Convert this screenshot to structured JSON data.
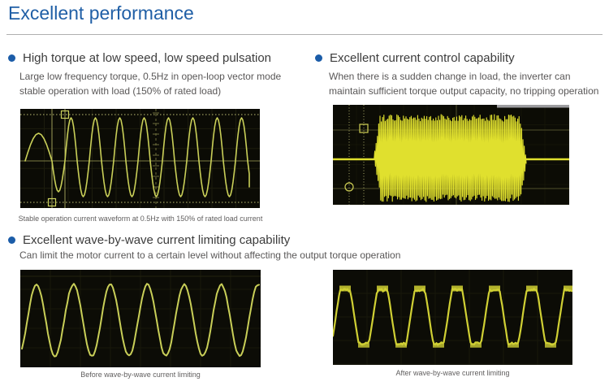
{
  "page": {
    "title": "Excellent performance"
  },
  "colors": {
    "title_blue": "#205fa6",
    "bullet_blue": "#1b5ca8",
    "heading_text": "#3c3c3c",
    "body_text": "#595757",
    "divider_gray": "#b0afaf"
  },
  "features": [
    {
      "heading": "High torque at low speed, low speed pulsation",
      "desc_lines": [
        "Large low frequency torque, 0.5Hz in open-loop vector mode",
        "stable operation with load (150% of rated load)"
      ]
    },
    {
      "heading": "Excellent current control capability",
      "desc_lines": [
        "When there is a sudden change in load, the inverter can",
        "maintain sufficient torque output capacity, no tripping operation"
      ]
    },
    {
      "heading": "Excellent wave-by-wave current limiting capability",
      "desc_lines": [
        "Can limit the motor current to a certain level without affecting the output torque operation"
      ]
    }
  ],
  "captions": {
    "low_speed": "Stable operation current waveform at 0.5Hz with 150% of rated load current",
    "before_limit": "Before wave-by-wave current limiting",
    "after_limit": "After wave-by-wave current limiting"
  },
  "chart_data": [
    {
      "id": "low-speed-scope",
      "type": "line",
      "pattern": "current sine wave: small half-amplitude first hump then steady full-amplitude cycles; dashed amplitude cursor lines top/bottom, two vertical cursor lines with square markers",
      "cycles": 8,
      "trace_color": "#c9cf58",
      "bg_color": "#0b0b05",
      "caption": "Stable operation current waveform at 0.5Hz with 150% of rated load current"
    },
    {
      "id": "sudden-load-scope",
      "type": "line",
      "pattern": "quiet flat line, dense high-frequency full-amplitude burst during sudden load change, quiet flat line; dotted vertical cursors with square and circle markers",
      "cycles": 60,
      "trace_color": "#e0e02e",
      "bg_color": "#0c0c05"
    },
    {
      "id": "before-limit-scope",
      "type": "line",
      "pattern": "clean motor-current sine wave",
      "cycles": 6.5,
      "trace_color": "#c9cf58",
      "bg_color": "#0c0c06",
      "caption": "Before wave-by-wave current limiting"
    },
    {
      "id": "after-limit-scope",
      "type": "line",
      "pattern": "sine wave clipped flat at peaks and troughs with noisy blobs where limiting acts",
      "cycles": 6.2,
      "trace_color": "#d0d034",
      "bg_color": "#0c0c06",
      "caption": "After wave-by-wave current limiting"
    }
  ]
}
